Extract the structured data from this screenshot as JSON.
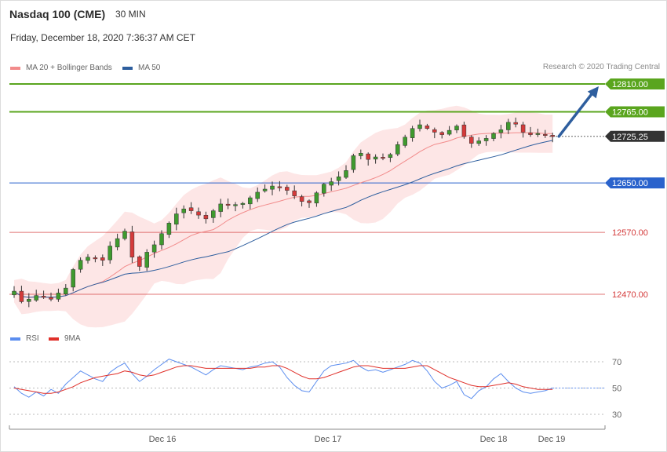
{
  "header": {
    "title": "Nasdaq 100 (CME)",
    "timeframe": "30 MIN",
    "datetime": "Friday, December 18, 2020 7:36:37 AM CET"
  },
  "legend": {
    "ma20": "MA 20 + Bollinger Bands",
    "ma50": "MA 50",
    "credit": "Research © 2020 Trading Central",
    "rsi": "RSI",
    "rsi_ma": "9MA"
  },
  "colors": {
    "ma20": "#f28b8b",
    "ma50": "#2e5e9e",
    "band_fill": "#fde2e2",
    "up_candle": "#3f9a2e",
    "down_candle": "#d43a3a",
    "resistance": "#5aa51e",
    "support": "#d43a3a",
    "pivot": "#2962cc",
    "current": "#333333",
    "arrow": "#2e5e9e",
    "rsi_line": "#5b8def",
    "rsi_ma_line": "#e0302a"
  },
  "chart_data": {
    "type": "candlestick",
    "price_axis": {
      "min": 12430,
      "max": 12835
    },
    "levels": [
      {
        "label": "12810.00",
        "value": 12810,
        "kind": "resistance"
      },
      {
        "label": "12765.00",
        "value": 12765,
        "kind": "resistance"
      },
      {
        "label": "12725.25",
        "value": 12725.25,
        "kind": "current"
      },
      {
        "label": "12650.00",
        "value": 12650,
        "kind": "pivot"
      },
      {
        "label": "12570.00",
        "value": 12570,
        "kind": "support"
      },
      {
        "label": "12470.00",
        "value": 12470,
        "kind": "support"
      }
    ],
    "x_ticks": [
      "Dec 16",
      "Dec 17",
      "Dec 18",
      "Dec 19"
    ],
    "close_path": [
      12475,
      12458,
      12462,
      12468,
      12465,
      12462,
      12472,
      12480,
      12510,
      12525,
      12530,
      12528,
      12525,
      12548,
      12560,
      12572,
      12530,
      12515,
      12538,
      12550,
      12568,
      12585,
      12600,
      12608,
      12605,
      12598,
      12592,
      12605,
      12616,
      12614,
      12615,
      12617,
      12626,
      12635,
      12640,
      12645,
      12643,
      12638,
      12629,
      12620,
      12618,
      12634,
      12648,
      12652,
      12660,
      12670,
      12694,
      12698,
      12688,
      12692,
      12690,
      12696,
      12712,
      12724,
      12738,
      12744,
      12738,
      12732,
      12728,
      12735,
      12742,
      12725,
      12714,
      12718,
      12722,
      12730,
      12736,
      12748,
      12745,
      12732,
      12728,
      12730,
      12728,
      12725
    ],
    "rsi": {
      "levels": [
        70,
        50,
        30
      ],
      "values": [
        51,
        46,
        43,
        47,
        44,
        49,
        46,
        53,
        58,
        63,
        60,
        57,
        55,
        62,
        66,
        69,
        61,
        55,
        59,
        64,
        68,
        72,
        70,
        68,
        66,
        63,
        60,
        64,
        67,
        66,
        65,
        64,
        66,
        67,
        69,
        70,
        66,
        58,
        52,
        48,
        47,
        55,
        63,
        67,
        68,
        69,
        71,
        66,
        63,
        64,
        62,
        64,
        66,
        68,
        71,
        69,
        63,
        55,
        50,
        52,
        55,
        45,
        42,
        48,
        51,
        57,
        61,
        55,
        50,
        47,
        46,
        47,
        48,
        50
      ],
      "ma": [
        50,
        49,
        48,
        47,
        46,
        46,
        47,
        49,
        51,
        54,
        56,
        58,
        59,
        60,
        61,
        63,
        62,
        60,
        59,
        60,
        62,
        64,
        66,
        67,
        67,
        66,
        65,
        65,
        65,
        65,
        65,
        65,
        65,
        66,
        66,
        67,
        67,
        65,
        62,
        59,
        57,
        57,
        58,
        60,
        62,
        64,
        66,
        67,
        67,
        66,
        65,
        65,
        65,
        65,
        66,
        67,
        67,
        64,
        61,
        58,
        56,
        54,
        52,
        51,
        51,
        52,
        53,
        54,
        53,
        51,
        50,
        49,
        49,
        49
      ]
    }
  }
}
